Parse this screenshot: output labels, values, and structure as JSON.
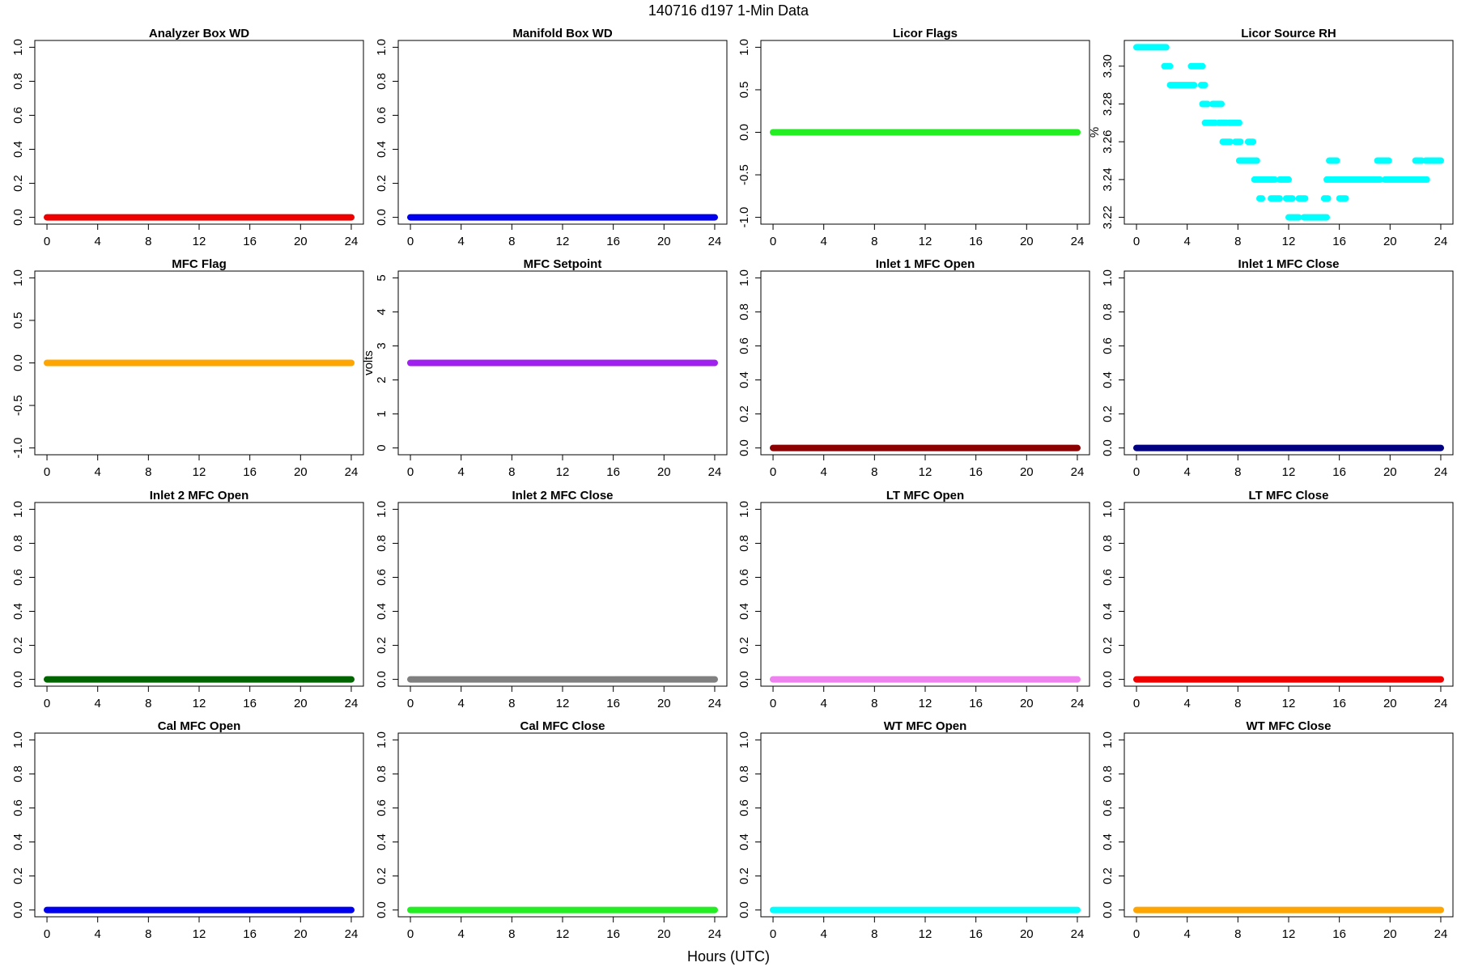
{
  "title": "140716   d197   1-Min Data",
  "xlabel": "Hours (UTC)",
  "chart_data": [
    {
      "type": "line",
      "title": "Analyzer Box WD",
      "color": "#ee0000",
      "x": [
        0,
        24
      ],
      "values": [
        0,
        0
      ],
      "xlim": [
        -0.96,
        24.96
      ],
      "ylim": [
        -0.04,
        1.04
      ],
      "xticks": [
        0,
        4,
        8,
        12,
        16,
        20,
        24
      ],
      "yticks": [
        {
          "value": 0,
          "label": "0.0"
        },
        0.2,
        0.4,
        0.6,
        0.8,
        {
          "value": 1,
          "label": "1.0"
        }
      ]
    },
    {
      "type": "line",
      "title": "Manifold Box WD",
      "color": "#0000ee",
      "x": [
        0,
        24
      ],
      "values": [
        0,
        0
      ],
      "xlim": [
        -0.96,
        24.96
      ],
      "ylim": [
        -0.04,
        1.04
      ],
      "xticks": [
        0,
        4,
        8,
        12,
        16,
        20,
        24
      ],
      "yticks": [
        {
          "value": 0,
          "label": "0.0"
        },
        0.2,
        0.4,
        0.6,
        0.8,
        {
          "value": 1,
          "label": "1.0"
        }
      ]
    },
    {
      "type": "line",
      "title": "Licor Flags",
      "color": "#22ee22",
      "x": [
        0,
        24
      ],
      "values": [
        0,
        0
      ],
      "xlim": [
        -0.96,
        24.96
      ],
      "ylim": [
        -1.08,
        1.08
      ],
      "xticks": [
        0,
        4,
        8,
        12,
        16,
        20,
        24
      ],
      "yticks": [
        {
          "value": -1,
          "label": "-1.0"
        },
        -0.5,
        {
          "value": 0,
          "label": "0.0"
        },
        0.5,
        {
          "value": 1,
          "label": "1.0"
        }
      ]
    },
    {
      "type": "line",
      "title": "Licor Source RH",
      "ylabel": "%",
      "color": "#00ffff",
      "x": [
        0,
        2.35,
        2.35,
        2.2,
        2.65,
        2.65,
        2.65,
        4.55,
        4.55,
        4.3,
        5.2,
        5.2,
        5.1,
        5.4,
        5.4,
        5.2,
        5.6,
        5.6,
        5.4,
        6.2,
        6.2,
        6.0,
        6.7,
        6.7,
        6.5,
        7.1,
        7.1,
        6.8,
        7.4,
        7.4,
        7.3,
        8.1,
        8.1,
        7.8,
        8.2,
        8.2,
        8.1,
        9.5,
        9.5,
        8.8,
        9.2,
        9.2,
        9.3,
        10.9,
        10.9,
        9.7,
        9.9,
        9.9,
        10.6,
        11.3,
        11.3,
        11.3,
        12.0,
        12.0,
        11.8,
        12.3,
        12.3,
        12.0,
        12.8,
        12.8,
        12.8,
        13.3,
        13.3,
        13.2,
        15.0,
        15.0,
        14.8,
        15.1,
        15.1,
        15.0,
        15.4,
        15.4,
        15.2,
        15.8,
        15.8,
        15.5,
        19.2,
        19.2,
        16.0,
        16.5,
        16.5,
        19.0,
        19.9,
        19.9,
        19.6,
        22.9,
        22.9,
        22.0,
        22.5,
        22.5,
        22.8,
        24
      ],
      "values": [
        3.31,
        3.31,
        null,
        3.3,
        3.3,
        null,
        3.29,
        3.29,
        null,
        3.3,
        3.3,
        null,
        3.29,
        3.29,
        null,
        3.28,
        3.28,
        null,
        3.27,
        3.27,
        null,
        3.28,
        3.28,
        null,
        3.27,
        3.27,
        null,
        3.26,
        3.26,
        null,
        3.27,
        3.27,
        null,
        3.26,
        3.26,
        null,
        3.25,
        3.25,
        null,
        3.26,
        3.26,
        null,
        3.24,
        3.24,
        null,
        3.23,
        3.23,
        null,
        3.23,
        3.23,
        null,
        3.24,
        3.24,
        null,
        3.23,
        3.23,
        null,
        3.22,
        3.22,
        null,
        3.23,
        3.23,
        null,
        3.22,
        3.22,
        null,
        3.23,
        3.23,
        null,
        3.24,
        3.24,
        null,
        3.25,
        3.25,
        null,
        3.24,
        3.24,
        null,
        3.23,
        3.23,
        null,
        3.25,
        3.25,
        null,
        3.24,
        3.24,
        null,
        3.25,
        3.25,
        null,
        3.25,
        3.25
      ],
      "xlim": [
        -0.96,
        24.96
      ],
      "ylim": [
        3.2164,
        3.3136
      ],
      "xticks": [
        0,
        4,
        8,
        12,
        16,
        20,
        24
      ],
      "yticks": [
        3.22,
        3.24,
        3.26,
        3.28,
        {
          "value": 3.3,
          "label": "3.30"
        }
      ]
    },
    {
      "type": "line",
      "title": "MFC Flag",
      "color": "#ffa500",
      "x": [
        0,
        24
      ],
      "values": [
        0,
        0
      ],
      "xlim": [
        -0.96,
        24.96
      ],
      "ylim": [
        -1.08,
        1.08
      ],
      "xticks": [
        0,
        4,
        8,
        12,
        16,
        20,
        24
      ],
      "yticks": [
        {
          "value": -1,
          "label": "-1.0"
        },
        -0.5,
        {
          "value": 0,
          "label": "0.0"
        },
        0.5,
        {
          "value": 1,
          "label": "1.0"
        }
      ]
    },
    {
      "type": "line",
      "title": "MFC Setpoint",
      "ylabel": "volts",
      "color": "#a020f0",
      "x": [
        0,
        24
      ],
      "values": [
        2.5,
        2.5
      ],
      "xlim": [
        -0.96,
        24.96
      ],
      "ylim": [
        -0.2,
        5.2
      ],
      "xticks": [
        0,
        4,
        8,
        12,
        16,
        20,
        24
      ],
      "yticks": [
        0,
        1,
        2,
        3,
        4,
        5
      ]
    },
    {
      "type": "line",
      "title": "Inlet 1 MFC Open",
      "color": "#8b0000",
      "x": [
        0,
        24
      ],
      "values": [
        0,
        0
      ],
      "xlim": [
        -0.96,
        24.96
      ],
      "ylim": [
        -0.04,
        1.04
      ],
      "xticks": [
        0,
        4,
        8,
        12,
        16,
        20,
        24
      ],
      "yticks": [
        {
          "value": 0,
          "label": "0.0"
        },
        0.2,
        0.4,
        0.6,
        0.8,
        {
          "value": 1,
          "label": "1.0"
        }
      ]
    },
    {
      "type": "line",
      "title": "Inlet 1 MFC Close",
      "color": "#000080",
      "x": [
        0,
        24
      ],
      "values": [
        0,
        0
      ],
      "xlim": [
        -0.96,
        24.96
      ],
      "ylim": [
        -0.04,
        1.04
      ],
      "xticks": [
        0,
        4,
        8,
        12,
        16,
        20,
        24
      ],
      "yticks": [
        {
          "value": 0,
          "label": "0.0"
        },
        0.2,
        0.4,
        0.6,
        0.8,
        {
          "value": 1,
          "label": "1.0"
        }
      ]
    },
    {
      "type": "line",
      "title": "Inlet 2 MFC Open",
      "color": "#006400",
      "x": [
        0,
        24
      ],
      "values": [
        0,
        0
      ],
      "xlim": [
        -0.96,
        24.96
      ],
      "ylim": [
        -0.04,
        1.04
      ],
      "xticks": [
        0,
        4,
        8,
        12,
        16,
        20,
        24
      ],
      "yticks": [
        {
          "value": 0,
          "label": "0.0"
        },
        0.2,
        0.4,
        0.6,
        0.8,
        {
          "value": 1,
          "label": "1.0"
        }
      ]
    },
    {
      "type": "line",
      "title": "Inlet 2 MFC Close",
      "color": "#808080",
      "x": [
        0,
        24
      ],
      "values": [
        0,
        0
      ],
      "xlim": [
        -0.96,
        24.96
      ],
      "ylim": [
        -0.04,
        1.04
      ],
      "xticks": [
        0,
        4,
        8,
        12,
        16,
        20,
        24
      ],
      "yticks": [
        {
          "value": 0,
          "label": "0.0"
        },
        0.2,
        0.4,
        0.6,
        0.8,
        {
          "value": 1,
          "label": "1.0"
        }
      ]
    },
    {
      "type": "line",
      "title": "LT MFC Open",
      "color": "#ee82ee",
      "x": [
        0,
        24
      ],
      "values": [
        0,
        0
      ],
      "xlim": [
        -0.96,
        24.96
      ],
      "ylim": [
        -0.04,
        1.04
      ],
      "xticks": [
        0,
        4,
        8,
        12,
        16,
        20,
        24
      ],
      "yticks": [
        {
          "value": 0,
          "label": "0.0"
        },
        0.2,
        0.4,
        0.6,
        0.8,
        {
          "value": 1,
          "label": "1.0"
        }
      ]
    },
    {
      "type": "line",
      "title": "LT MFC Close",
      "color": "#ee0000",
      "x": [
        0,
        24
      ],
      "values": [
        0,
        0
      ],
      "xlim": [
        -0.96,
        24.96
      ],
      "ylim": [
        -0.04,
        1.04
      ],
      "xticks": [
        0,
        4,
        8,
        12,
        16,
        20,
        24
      ],
      "yticks": [
        {
          "value": 0,
          "label": "0.0"
        },
        0.2,
        0.4,
        0.6,
        0.8,
        {
          "value": 1,
          "label": "1.0"
        }
      ]
    },
    {
      "type": "line",
      "title": "Cal MFC Open",
      "color": "#0000ee",
      "x": [
        0,
        24
      ],
      "values": [
        0,
        0
      ],
      "xlim": [
        -0.96,
        24.96
      ],
      "ylim": [
        -0.04,
        1.04
      ],
      "xticks": [
        0,
        4,
        8,
        12,
        16,
        20,
        24
      ],
      "yticks": [
        {
          "value": 0,
          "label": "0.0"
        },
        0.2,
        0.4,
        0.6,
        0.8,
        {
          "value": 1,
          "label": "1.0"
        }
      ]
    },
    {
      "type": "line",
      "title": "Cal MFC Close",
      "color": "#22ee22",
      "x": [
        0,
        24
      ],
      "values": [
        0,
        0
      ],
      "xlim": [
        -0.96,
        24.96
      ],
      "ylim": [
        -0.04,
        1.04
      ],
      "xticks": [
        0,
        4,
        8,
        12,
        16,
        20,
        24
      ],
      "yticks": [
        {
          "value": 0,
          "label": "0.0"
        },
        0.2,
        0.4,
        0.6,
        0.8,
        {
          "value": 1,
          "label": "1.0"
        }
      ]
    },
    {
      "type": "line",
      "title": "WT MFC Open",
      "color": "#00ffff",
      "x": [
        0,
        24
      ],
      "values": [
        0,
        0
      ],
      "xlim": [
        -0.96,
        24.96
      ],
      "ylim": [
        -0.04,
        1.04
      ],
      "xticks": [
        0,
        4,
        8,
        12,
        16,
        20,
        24
      ],
      "yticks": [
        {
          "value": 0,
          "label": "0.0"
        },
        0.2,
        0.4,
        0.6,
        0.8,
        {
          "value": 1,
          "label": "1.0"
        }
      ]
    },
    {
      "type": "line",
      "title": "WT MFC Close",
      "color": "#ffa500",
      "x": [
        0,
        24
      ],
      "values": [
        0,
        0
      ],
      "xlim": [
        -0.96,
        24.96
      ],
      "ylim": [
        -0.04,
        1.04
      ],
      "xticks": [
        0,
        4,
        8,
        12,
        16,
        20,
        24
      ],
      "yticks": [
        {
          "value": 0,
          "label": "0.0"
        },
        0.2,
        0.4,
        0.6,
        0.8,
        {
          "value": 1,
          "label": "1.0"
        }
      ]
    }
  ]
}
